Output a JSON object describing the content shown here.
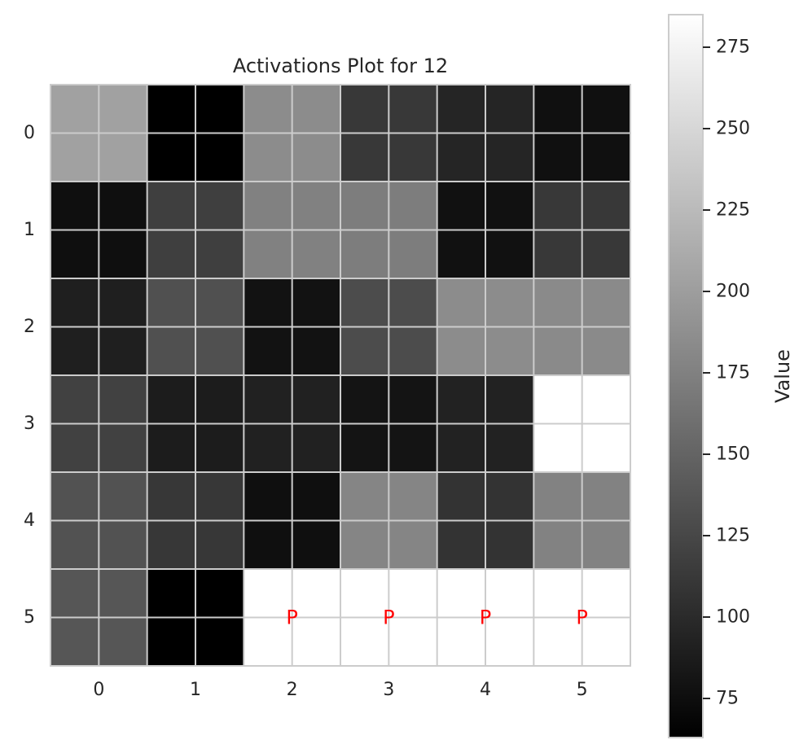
{
  "chart_data": {
    "type": "heatmap",
    "title": "Activations Plot for 12",
    "xlabel": "",
    "ylabel": "",
    "x_ticks": [
      "0",
      "1",
      "2",
      "3",
      "4",
      "5"
    ],
    "y_ticks": [
      "0",
      "1",
      "2",
      "3",
      "4",
      "5"
    ],
    "values": [
      [
        203,
        63,
        185,
        112,
        95,
        77
      ],
      [
        76,
        118,
        175,
        172,
        78,
        112
      ],
      [
        90,
        133,
        79,
        129,
        185,
        183
      ],
      [
        120,
        87,
        92,
        80,
        93,
        285
      ],
      [
        134,
        111,
        76,
        179,
        107,
        176
      ],
      [
        138,
        63,
        285,
        285,
        285,
        285
      ]
    ],
    "cell_marks": [
      {
        "row": 5,
        "col": 2,
        "text": "P"
      },
      {
        "row": 5,
        "col": 3,
        "text": "P"
      },
      {
        "row": 5,
        "col": 4,
        "text": "P"
      },
      {
        "row": 5,
        "col": 5,
        "text": "P"
      }
    ],
    "colormap": "gray",
    "vmin": 63,
    "vmax": 285,
    "grid": true,
    "mark_color": "#ff0000",
    "colorbar": {
      "label": "Value",
      "ticks": [
        75,
        100,
        125,
        150,
        175,
        200,
        225,
        250,
        275
      ],
      "tick_labels": [
        "75",
        "100",
        "125",
        "150",
        "175",
        "200",
        "225",
        "250",
        "275"
      ]
    }
  }
}
